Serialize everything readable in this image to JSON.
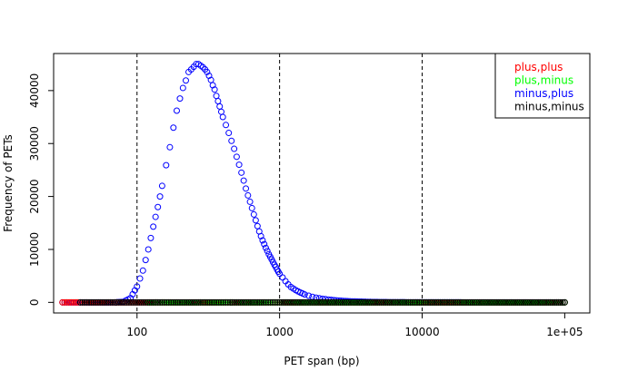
{
  "chart_data": {
    "type": "scatter",
    "xlabel": "PET span (bp)",
    "ylabel": "Frequency of PETs",
    "x_scale": "log",
    "xlim": [
      26,
      150000
    ],
    "ylim": [
      -2000,
      47000
    ],
    "x_ticks": [
      {
        "value": 100,
        "label": "100"
      },
      {
        "value": 1000,
        "label": "1000"
      },
      {
        "value": 10000,
        "label": "10000"
      },
      {
        "value": 100000,
        "label": "1e+05"
      }
    ],
    "y_ticks": [
      {
        "value": 0,
        "label": "0"
      },
      {
        "value": 10000,
        "label": "10000"
      },
      {
        "value": 20000,
        "label": "20000"
      },
      {
        "value": 30000,
        "label": "30000"
      },
      {
        "value": 40000,
        "label": "40000"
      }
    ],
    "vlines": [
      100,
      1000,
      10000
    ],
    "legend_position": "top-right",
    "series": [
      {
        "name": "plus,plus",
        "color": "#ff0000",
        "marker": "open-circle",
        "x": [
          30,
          110,
          150,
          210,
          260,
          340,
          420,
          560,
          700,
          900,
          1200,
          1700,
          2500,
          4000,
          7000,
          12000,
          20000,
          40000,
          70000,
          100000
        ],
        "y": [
          0,
          0,
          0,
          0,
          0,
          0,
          0,
          0,
          0,
          0,
          0,
          0,
          0,
          0,
          0,
          0,
          0,
          0,
          0,
          0
        ]
      },
      {
        "name": "plus,minus",
        "color": "#00ff00",
        "marker": "open-circle",
        "x": [
          120,
          140,
          160,
          190,
          240,
          300,
          380,
          480,
          600,
          780,
          1000,
          1400,
          2000,
          3000,
          5000,
          9000,
          16000,
          30000,
          60000,
          100000
        ],
        "y": [
          0,
          0,
          0,
          0,
          0,
          0,
          0,
          0,
          0,
          0,
          0,
          0,
          0,
          0,
          0,
          0,
          0,
          0,
          0,
          0
        ]
      },
      {
        "name": "minus,plus",
        "color": "#0000ff",
        "marker": "open-circle",
        "x": [
          30,
          40,
          50,
          60,
          70,
          80,
          90,
          100,
          110,
          120,
          130,
          140,
          150,
          160,
          170,
          180,
          190,
          200,
          210,
          220,
          230,
          240,
          250,
          260,
          270,
          280,
          290,
          300,
          310,
          320,
          330,
          340,
          350,
          360,
          370,
          380,
          390,
          400,
          420,
          440,
          460,
          480,
          500,
          520,
          540,
          560,
          580,
          600,
          620,
          640,
          660,
          680,
          700,
          720,
          740,
          760,
          780,
          800,
          820,
          840,
          860,
          880,
          900,
          920,
          940,
          960,
          980,
          1000,
          1050,
          1100,
          1150,
          1200,
          1300,
          1400,
          1500,
          1600,
          1700,
          1800,
          1900,
          2000,
          2200,
          2400,
          2600,
          2800,
          3000,
          3500,
          4000,
          4500,
          5000,
          6000,
          7000,
          8000,
          9000,
          10000,
          12000,
          15000,
          20000,
          30000,
          50000,
          70000,
          100000
        ],
        "y": [
          0,
          0,
          0,
          0,
          0,
          100,
          800,
          3000,
          6000,
          10000,
          14300,
          18000,
          22000,
          25900,
          29300,
          33000,
          36200,
          38500,
          40500,
          41900,
          43500,
          44000,
          44500,
          45000,
          45000,
          44700,
          44400,
          44000,
          43500,
          42800,
          42000,
          41000,
          40200,
          39000,
          38000,
          37000,
          36000,
          35000,
          33500,
          32000,
          30500,
          29000,
          27500,
          26000,
          24500,
          23000,
          21500,
          20200,
          19000,
          17800,
          16600,
          15500,
          14400,
          13400,
          12500,
          11700,
          11000,
          10300,
          9700,
          9100,
          8600,
          8100,
          7600,
          7100,
          6700,
          6200,
          5800,
          5400,
          4700,
          4000,
          3400,
          2900,
          2300,
          1850,
          1500,
          1250,
          1050,
          900,
          780,
          680,
          530,
          420,
          340,
          280,
          230,
          160,
          110,
          80,
          60,
          40,
          28,
          20,
          15,
          10,
          6,
          4,
          2,
          1,
          0,
          0,
          0
        ]
      },
      {
        "name": "minus,minus",
        "color": "#000000",
        "marker": "open-circle",
        "x": [
          40,
          55,
          70,
          85,
          150,
          180,
          230,
          280,
          360,
          450,
          550,
          650,
          800,
          1000,
          1300,
          1800,
          2500,
          3500,
          5000,
          8000,
          11000,
          16000,
          25000,
          45000,
          100000
        ],
        "y": [
          0,
          0,
          0,
          0,
          0,
          0,
          0,
          0,
          0,
          0,
          0,
          0,
          0,
          0,
          0,
          0,
          0,
          0,
          0,
          0,
          0,
          0,
          0,
          0,
          0
        ]
      }
    ]
  }
}
